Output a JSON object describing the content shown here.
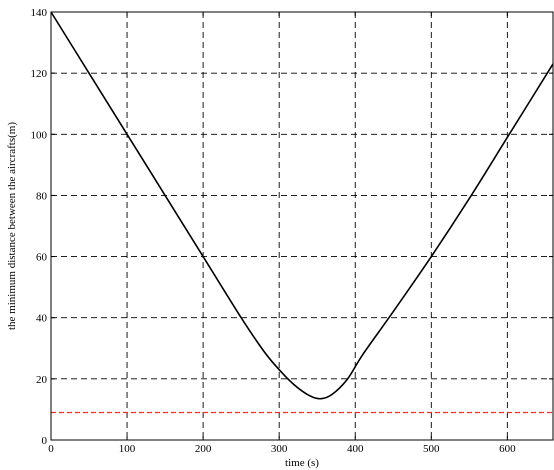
{
  "chart_data": {
    "type": "line",
    "title": "",
    "xlabel": "time (s)",
    "ylabel": "the minimum distance between the aircrafts(m)",
    "xlim": [
      0,
      660
    ],
    "ylim": [
      0,
      140
    ],
    "x_ticks": [
      0,
      100,
      200,
      300,
      400,
      500,
      600
    ],
    "y_ticks": [
      0,
      20,
      40,
      60,
      80,
      100,
      120,
      140
    ],
    "grid": true,
    "series": [
      {
        "color": "#000000",
        "style": "solid",
        "x": [
          0,
          50,
          100,
          150,
          200,
          250,
          280,
          300,
          320,
          340,
          355,
          370,
          390,
          410,
          450,
          500,
          550,
          600,
          660
        ],
        "y": [
          140,
          120,
          100,
          80,
          60,
          40,
          29,
          23,
          18,
          14.5,
          13.5,
          15,
          20,
          28,
          42,
          60,
          79,
          99,
          123
        ]
      },
      {
        "color": "#e8332a",
        "style": "dashed",
        "x": [
          0,
          660
        ],
        "y": [
          9,
          9
        ]
      }
    ]
  }
}
